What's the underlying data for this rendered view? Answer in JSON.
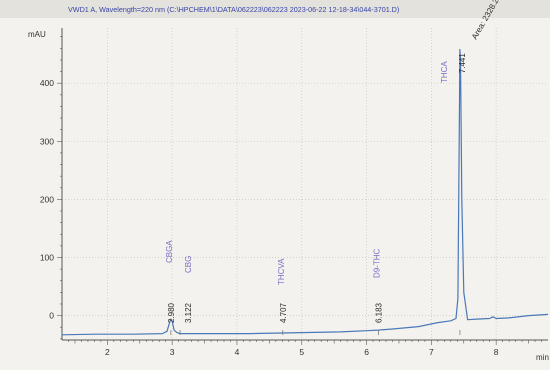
{
  "chart_data": {
    "type": "line",
    "title": "VWD1 A, Wavelength=220 nm (C:\\HPCHEM\\1\\DATA\\062223\\062223 2023-06-22 12-18-34\\044-3701.D)",
    "ylabel": "mAU",
    "xlabel": "min",
    "xlim": [
      1.3,
      8.8
    ],
    "ylim": [
      -42,
      495
    ],
    "x_ticks": [
      2,
      3,
      4,
      5,
      6,
      7,
      8
    ],
    "y_ticks": [
      0,
      100,
      200,
      300,
      400
    ],
    "x_tick_labels": [
      "2",
      "3",
      "4",
      "5",
      "6",
      "7",
      "8"
    ],
    "y_tick_labels": [
      "0",
      "100",
      "200",
      "300",
      "400"
    ],
    "grid": true,
    "color": "#4a78b8",
    "series": [
      {
        "x": [
          1.3,
          1.8,
          2.4,
          2.85,
          2.92,
          2.96,
          2.98,
          3.0,
          3.03,
          3.07,
          3.12,
          3.2,
          3.6,
          4.2,
          4.7,
          5.2,
          5.6,
          6.0,
          6.18,
          6.4,
          6.8,
          7.1,
          7.3,
          7.38,
          7.41,
          7.43,
          7.441,
          7.45,
          7.47,
          7.5,
          7.56,
          7.7,
          7.9,
          7.95,
          8.0,
          8.2,
          8.5,
          8.8
        ],
        "y": [
          -33,
          -32,
          -32,
          -31,
          -27,
          -12,
          -6,
          -10,
          -25,
          -29,
          -31,
          -31,
          -31,
          -31,
          -30,
          -29,
          -28,
          -26,
          -25,
          -23,
          -19,
          -12,
          -9,
          -5,
          30,
          300,
          458,
          440,
          200,
          40,
          -7,
          -6,
          -5,
          -2,
          -5,
          -4,
          0,
          2
        ]
      }
    ],
    "annotations": [
      {
        "name": "CBGA",
        "rt": "2.980",
        "x": 2.98
      },
      {
        "name": "CBG",
        "rt": "3.122",
        "x": 3.122
      },
      {
        "name": "THCVA",
        "rt": "4.707",
        "x": 4.707
      },
      {
        "name": "D9-THC",
        "rt": "6.183",
        "x": 6.183
      },
      {
        "name": "THCA",
        "rt": "7.441",
        "x": 7.441
      }
    ],
    "peak_note": "Area: 2328.23"
  }
}
